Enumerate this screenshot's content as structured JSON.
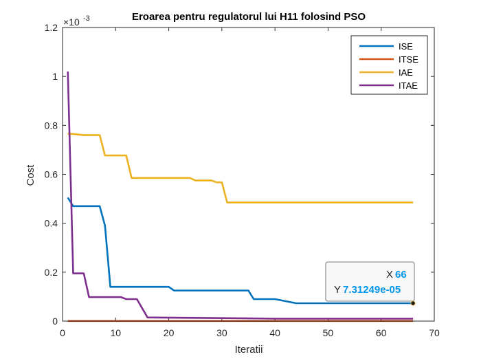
{
  "chart_data": {
    "type": "line",
    "title": "Eroarea pentru regulatorul lui H11 folosind PSO",
    "xlabel": "Iteratii",
    "ylabel": "Cost",
    "y_exponent_label": "×10",
    "y_exponent_power": "-3",
    "xlim": [
      0,
      70
    ],
    "ylim": [
      0,
      1.2
    ],
    "y_scale_note": "values in units of 1e-3",
    "xticks": [
      "0",
      "10",
      "20",
      "30",
      "40",
      "50",
      "60",
      "70"
    ],
    "yticks": [
      "0",
      "0.2",
      "0.4",
      "0.6",
      "0.8",
      "1",
      "1.2"
    ],
    "xtick_values": [
      0,
      10,
      20,
      30,
      40,
      50,
      60,
      70
    ],
    "ytick_values": [
      0,
      0.2,
      0.4,
      0.6,
      0.8,
      1.0,
      1.2
    ],
    "legend_position": "top-right",
    "series": [
      {
        "name": "ISE",
        "color": "#0072BD",
        "x": [
          1,
          2,
          7,
          8,
          9,
          20,
          21,
          35,
          36,
          40,
          44,
          66
        ],
        "y": [
          0.505,
          0.47,
          0.47,
          0.39,
          0.14,
          0.14,
          0.125,
          0.125,
          0.09,
          0.09,
          0.073,
          0.0731
        ]
      },
      {
        "name": "ITSE",
        "color": "#D95319",
        "x": [
          1,
          66
        ],
        "y": [
          0.0005,
          0.0005
        ]
      },
      {
        "name": "IAE",
        "color": "#EDB120",
        "x": [
          1,
          2,
          4,
          7,
          8,
          12,
          13,
          24,
          25,
          28,
          29,
          30,
          31,
          66
        ],
        "y": [
          0.765,
          0.765,
          0.76,
          0.76,
          0.677,
          0.677,
          0.585,
          0.585,
          0.575,
          0.575,
          0.567,
          0.567,
          0.485,
          0.485
        ]
      },
      {
        "name": "ITAE",
        "color": "#7E2F8E",
        "x": [
          1,
          2,
          4,
          5,
          11,
          12,
          14,
          16,
          40,
          66
        ],
        "y": [
          1.02,
          0.195,
          0.195,
          0.098,
          0.098,
          0.09,
          0.09,
          0.015,
          0.01,
          0.01
        ]
      }
    ],
    "datatip": {
      "x_label": "X",
      "x_value": "66",
      "y_label": "Y",
      "y_value": "7.31249e-05",
      "point_x": 66,
      "point_y": 0.0731
    }
  }
}
